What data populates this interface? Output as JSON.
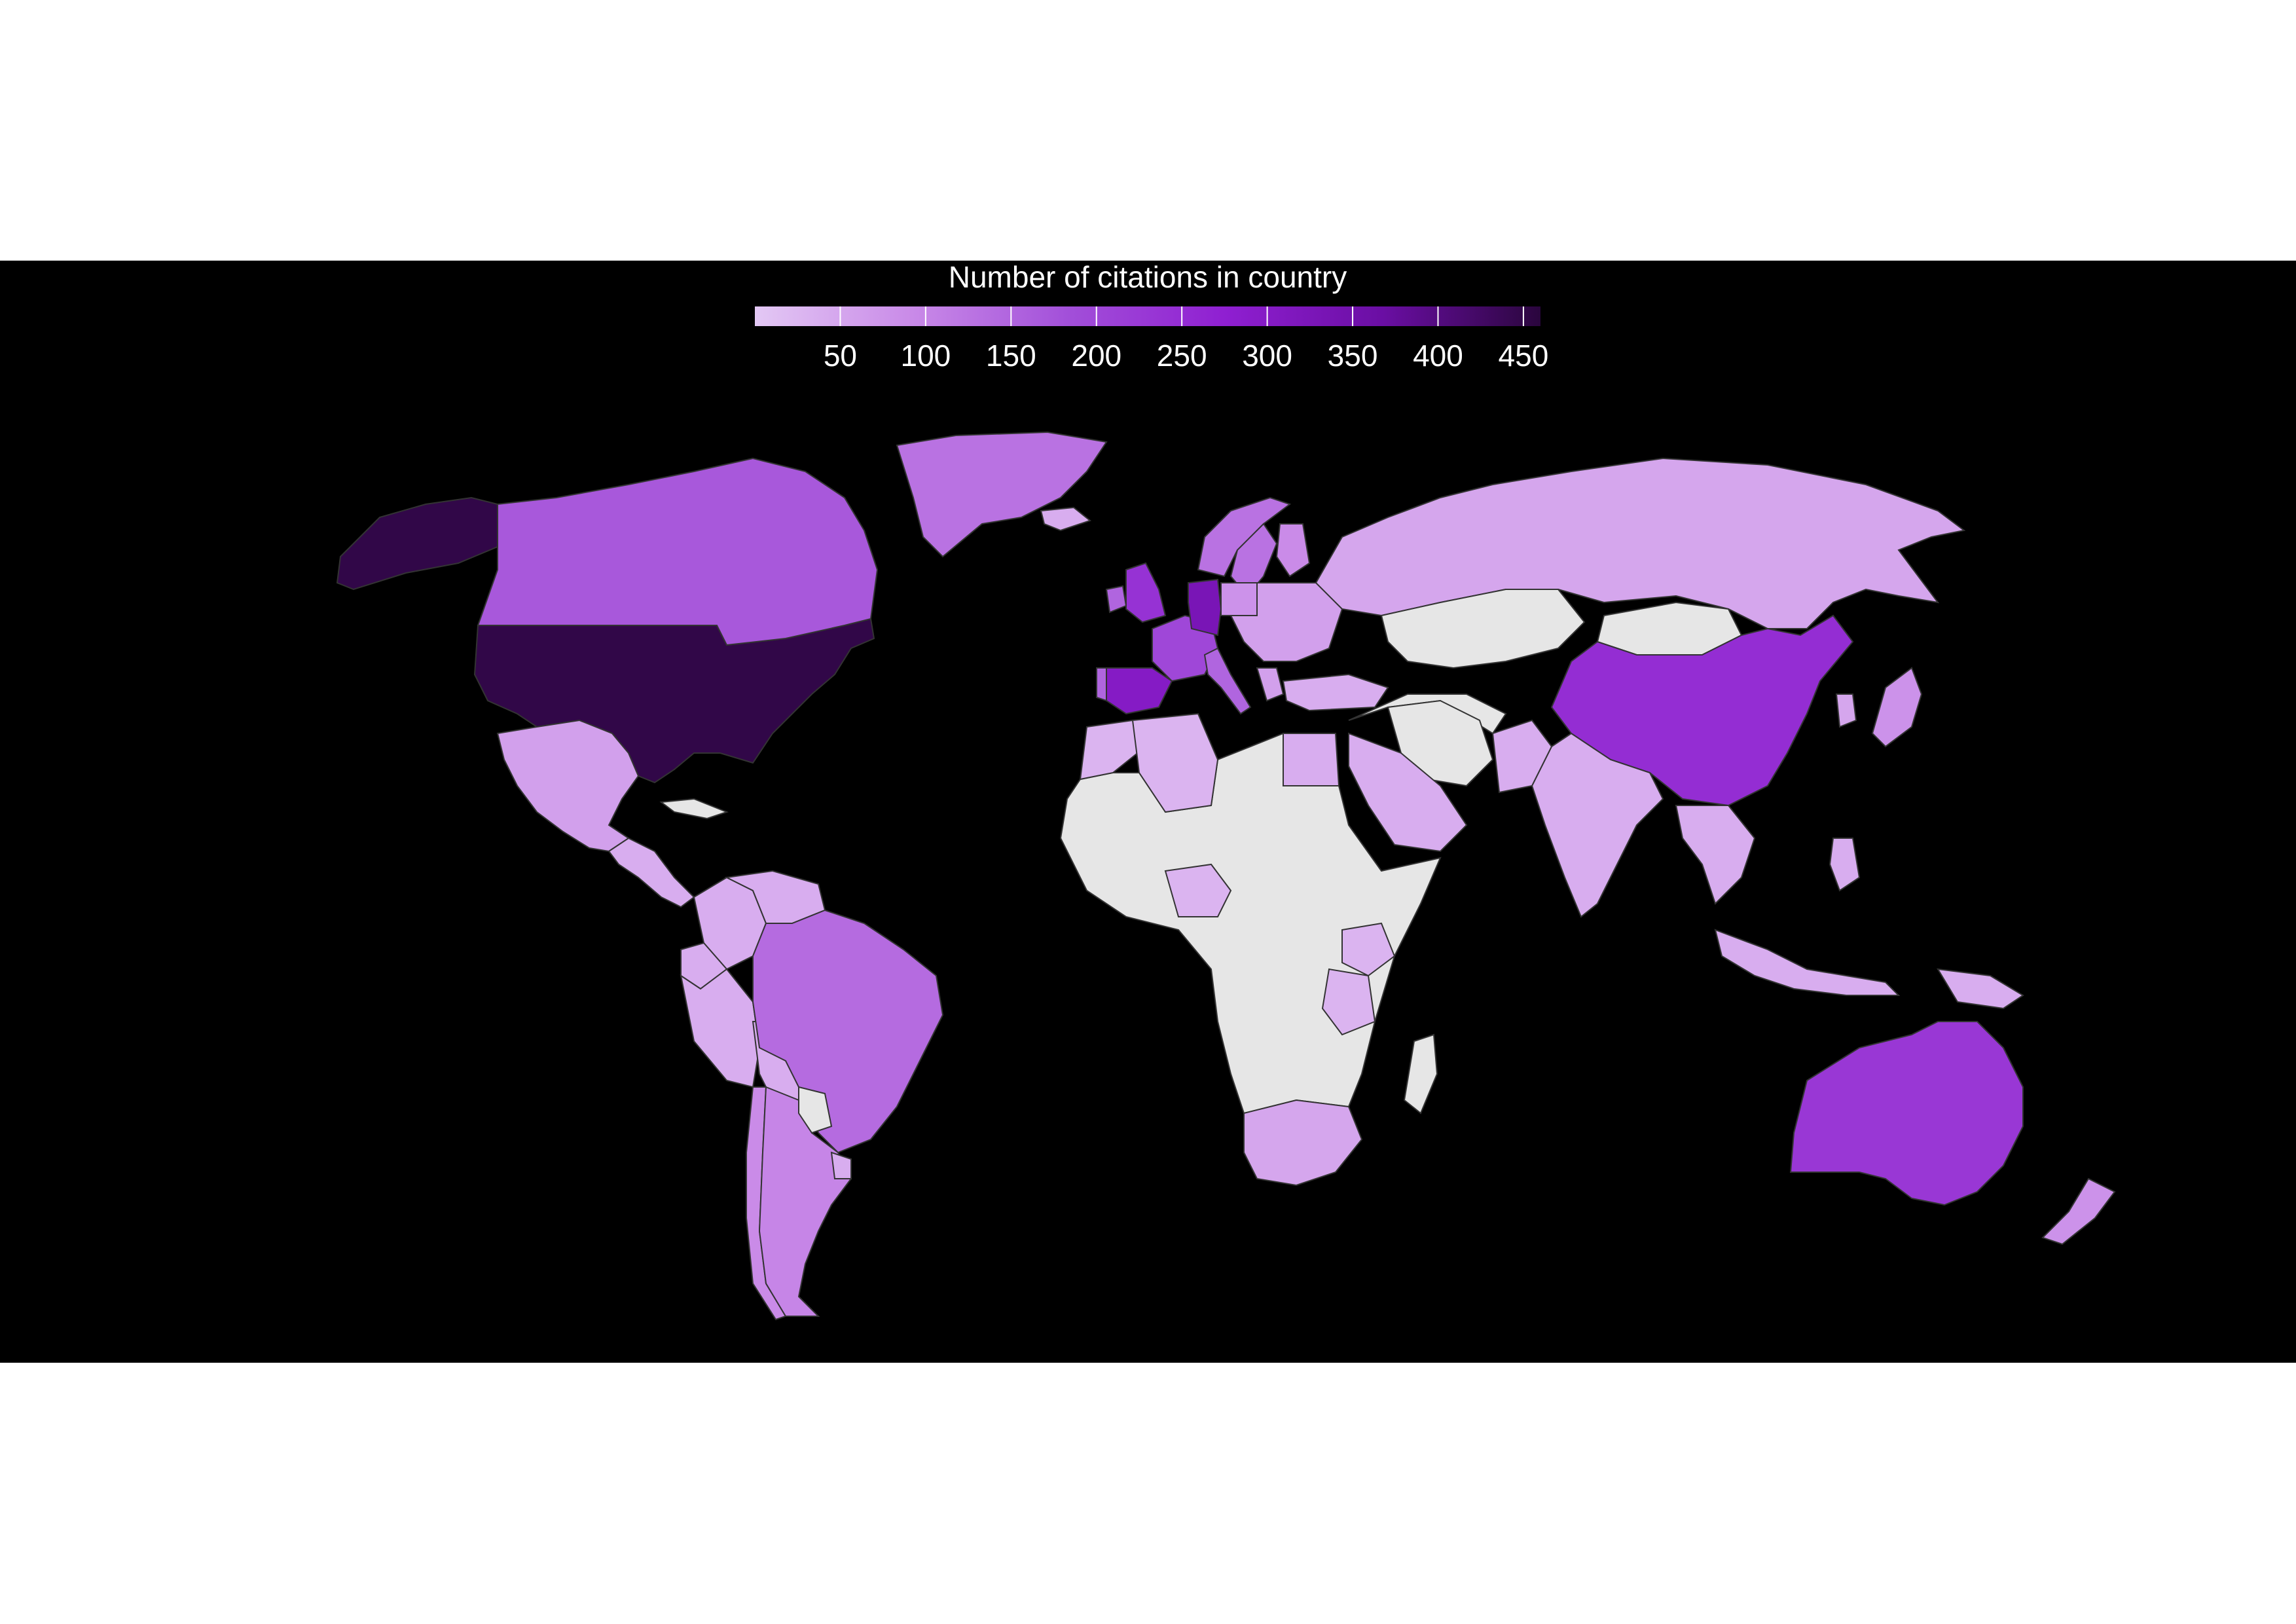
{
  "legend": {
    "title": "Number of citations in country",
    "min": 0,
    "max": 460,
    "ticks": [
      "50",
      "100",
      "150",
      "200",
      "250",
      "300",
      "350",
      "400",
      "450"
    ],
    "tick_values": [
      50,
      100,
      150,
      200,
      250,
      300,
      350,
      400,
      450
    ],
    "colors": [
      "#e3c8f4",
      "#c98ae8",
      "#a24fd9",
      "#8f1fd1",
      "#6a0ea3",
      "#2a063d"
    ]
  },
  "style": {
    "background": "#000000",
    "no_data_color": "#e6e6e6",
    "border_color": "#333333"
  },
  "chart_data": {
    "type": "heatmap",
    "title": "Number of citations in country",
    "scale": [
      0,
      460
    ],
    "regions": [
      {
        "name": "United States",
        "value": 450
      },
      {
        "name": "Alaska",
        "value": 450
      },
      {
        "name": "Canada",
        "value": 170
      },
      {
        "name": "Greenland",
        "value": 130
      },
      {
        "name": "Mexico",
        "value": 60
      },
      {
        "name": "Central America",
        "value": 40
      },
      {
        "name": "Cuba",
        "value": 0
      },
      {
        "name": "Colombia",
        "value": 40
      },
      {
        "name": "Venezuela",
        "value": 40
      },
      {
        "name": "Ecuador",
        "value": 40
      },
      {
        "name": "Peru",
        "value": 40
      },
      {
        "name": "Bolivia",
        "value": 40
      },
      {
        "name": "Brazil",
        "value": 140
      },
      {
        "name": "Chile",
        "value": 90
      },
      {
        "name": "Argentina",
        "value": 100
      },
      {
        "name": "Paraguay",
        "value": 0
      },
      {
        "name": "Uruguay",
        "value": 40
      },
      {
        "name": "United Kingdom",
        "value": 240
      },
      {
        "name": "Ireland",
        "value": 150
      },
      {
        "name": "Iceland",
        "value": 40
      },
      {
        "name": "Norway",
        "value": 130
      },
      {
        "name": "Sweden",
        "value": 130
      },
      {
        "name": "Finland",
        "value": 90
      },
      {
        "name": "France",
        "value": 200
      },
      {
        "name": "Spain",
        "value": 300
      },
      {
        "name": "Portugal",
        "value": 150
      },
      {
        "name": "Germany",
        "value": 330
      },
      {
        "name": "Italy",
        "value": 150
      },
      {
        "name": "Poland",
        "value": 80
      },
      {
        "name": "Eastern Europe",
        "value": 60
      },
      {
        "name": "Greece",
        "value": 60
      },
      {
        "name": "Turkey",
        "value": 40
      },
      {
        "name": "Russia",
        "value": 50
      },
      {
        "name": "Kazakhstan",
        "value": 0
      },
      {
        "name": "Mongolia",
        "value": 0
      },
      {
        "name": "China",
        "value": 250
      },
      {
        "name": "Japan",
        "value": 80
      },
      {
        "name": "South Korea",
        "value": 50
      },
      {
        "name": "India",
        "value": 40
      },
      {
        "name": "Pakistan",
        "value": 40
      },
      {
        "name": "Iran",
        "value": 0
      },
      {
        "name": "Saudi Arabia",
        "value": 40
      },
      {
        "name": "Egypt",
        "value": 40
      },
      {
        "name": "Southeast Asia",
        "value": 40
      },
      {
        "name": "Indonesia",
        "value": 40
      },
      {
        "name": "Philippines",
        "value": 40
      },
      {
        "name": "Papua New Guinea",
        "value": 40
      },
      {
        "name": "Australia",
        "value": 230
      },
      {
        "name": "New Zealand",
        "value": 80
      },
      {
        "name": "Morocco",
        "value": 30
      },
      {
        "name": "Algeria",
        "value": 30
      },
      {
        "name": "Nigeria",
        "value": 30
      },
      {
        "name": "Kenya",
        "value": 30
      },
      {
        "name": "Tanzania",
        "value": 30
      },
      {
        "name": "South Africa",
        "value": 50
      },
      {
        "name": "Madagascar",
        "value": 0
      }
    ]
  }
}
